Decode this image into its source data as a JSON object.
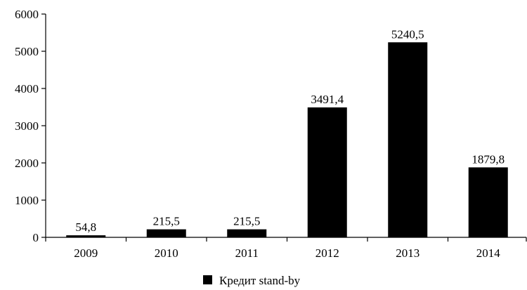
{
  "chart_data": {
    "type": "bar",
    "categories": [
      "2009",
      "2010",
      "2011",
      "2012",
      "2013",
      "2014"
    ],
    "series": [
      {
        "name": "Кредит stand-by",
        "values": [
          54.8,
          215.5,
          215.5,
          3491.4,
          5240.5,
          1879.8
        ],
        "value_labels": [
          "54,8",
          "215,5",
          "215,5",
          "3491,4",
          "5240,5",
          "1879,8"
        ],
        "color": "#000000"
      }
    ],
    "yticks": [
      "0",
      "1000",
      "2000",
      "3000",
      "4000",
      "5000",
      "6000"
    ],
    "ylim": [
      0,
      6000
    ],
    "title": "",
    "xlabel": "",
    "ylabel": "",
    "grid": false,
    "legend_position": "bottom-center"
  }
}
